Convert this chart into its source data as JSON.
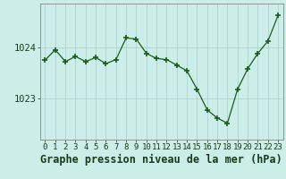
{
  "x": [
    0,
    1,
    2,
    3,
    4,
    5,
    6,
    7,
    8,
    9,
    10,
    11,
    12,
    13,
    14,
    15,
    16,
    17,
    18,
    19,
    20,
    21,
    22,
    23
  ],
  "y": [
    1023.75,
    1023.95,
    1023.72,
    1023.82,
    1023.72,
    1023.8,
    1023.68,
    1023.76,
    1024.18,
    1024.16,
    1023.88,
    1023.78,
    1023.76,
    1023.65,
    1023.54,
    1023.18,
    1022.78,
    1022.62,
    1022.52,
    1023.18,
    1023.58,
    1023.88,
    1024.12,
    1024.62
  ],
  "line_color": "#1a5c1a",
  "marker": "+",
  "marker_size": 4,
  "bg_color": "#cceee8",
  "grid_color": "#aacccc",
  "title": "Graphe pression niveau de la mer (hPa)",
  "ylabel_ticks": [
    1023,
    1024
  ],
  "ylim": [
    1022.2,
    1024.85
  ],
  "xlim": [
    -0.5,
    23.5
  ],
  "title_fontsize": 8.5,
  "tick_fontsize": 6.5,
  "spine_color": "#888888"
}
